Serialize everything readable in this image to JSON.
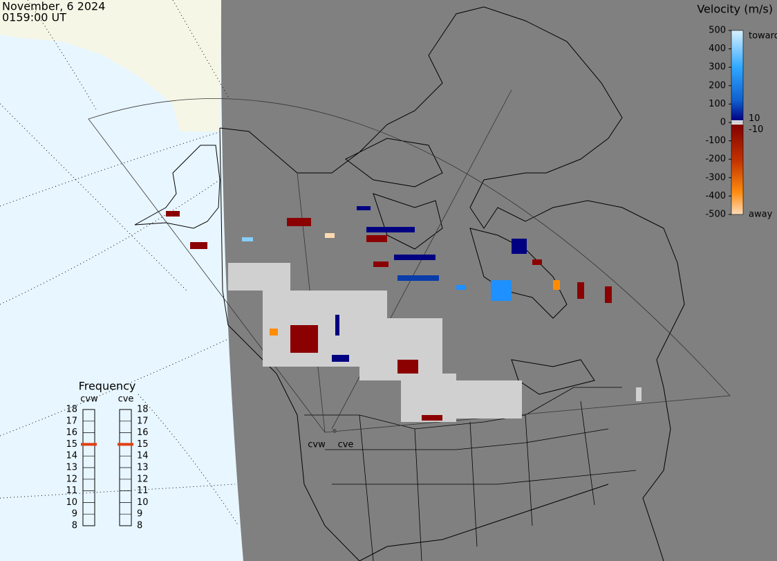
{
  "header": {
    "date": "November, 6 2024",
    "time": "0159:00 UT"
  },
  "colorbar": {
    "title": "Velocity (m/s)",
    "range": [
      -500,
      500
    ],
    "ticks": [
      500,
      400,
      300,
      200,
      100,
      0,
      -100,
      -200,
      -300,
      -400,
      -500
    ],
    "inner_ticks": [
      10,
      -10
    ],
    "toward": "toward",
    "away": "away"
  },
  "frequency": {
    "title": "Frequency",
    "range": [
      8,
      18
    ],
    "ticks": [
      18,
      17,
      16,
      15,
      14,
      13,
      12,
      11,
      10,
      9,
      8
    ],
    "radars": [
      {
        "name": "cvw",
        "value": 15
      },
      {
        "name": "cve",
        "value": 15
      }
    ]
  },
  "map": {
    "labels": [
      "cvw",
      "cve"
    ]
  }
}
